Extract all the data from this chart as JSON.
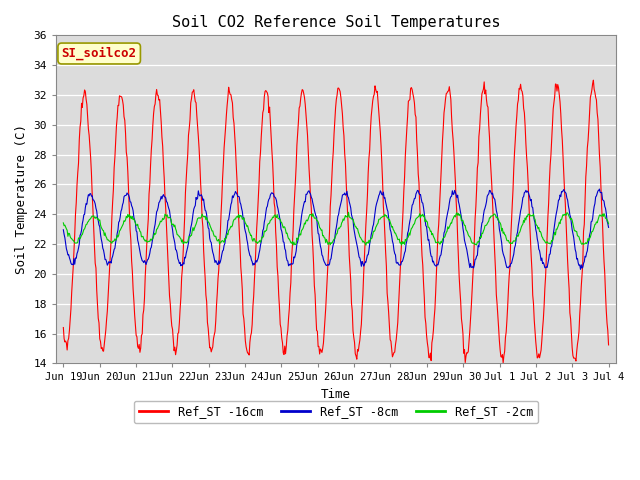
{
  "title": "Soil CO2 Reference Soil Temperatures",
  "xlabel": "Time",
  "ylabel": "Soil Temperature (C)",
  "ylim": [
    14,
    36
  ],
  "yticks": [
    14,
    16,
    18,
    20,
    22,
    24,
    26,
    28,
    30,
    32,
    34,
    36
  ],
  "bg_color": "#dcdcdc",
  "legend_label": "SI_soilco2",
  "line_colors": [
    "#ff0000",
    "#0000cc",
    "#00cc00"
  ],
  "line_labels": [
    "Ref_ST -16cm",
    "Ref_ST -8cm",
    "Ref_ST -2cm"
  ],
  "xtick_labels": [
    "Jun 19",
    "Jun 20",
    "Jun 21",
    "Jun 22",
    "Jun 23",
    "Jun 24",
    "Jun 25",
    "Jun 26",
    "Jun 27",
    "Jun 28",
    "Jun 29",
    "Jun 30",
    "Jul 1",
    "Jul 2",
    "Jul 3",
    "Jul 4"
  ],
  "xtick_positions": [
    0,
    1,
    2,
    3,
    4,
    5,
    6,
    7,
    8,
    9,
    10,
    11,
    12,
    13,
    14,
    15
  ]
}
